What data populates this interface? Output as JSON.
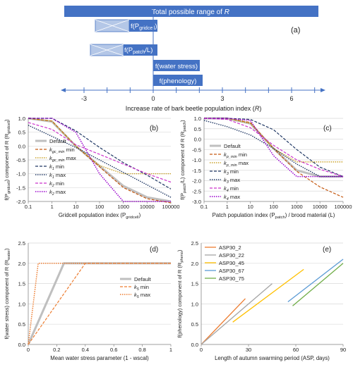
{
  "colors": {
    "bar_blue": "#4472C4",
    "bar_light": "#B4C7E7",
    "default_gray": "#BFBFBF",
    "orange": "#ED7D31",
    "brown": "#C65911",
    "olive": "#BF9000",
    "navy": "#203864",
    "magenta": "#CC33CC",
    "purple": "#9900CC",
    "asp_orange": "#ED7D31",
    "asp_gray": "#A5A5A5",
    "asp_gold": "#FFC000",
    "asp_blue": "#5B9BD5",
    "asp_green": "#70AD47"
  },
  "panel_a": {
    "label": "(a)",
    "bars": [
      {
        "text": "Total possible range of ",
        "var": "R"
      },
      {
        "text": "f(P",
        "sub": "gridcell",
        "tail": ")"
      },
      {
        "text": "f(P",
        "sub": "patch",
        "tail": "/L)"
      },
      {
        "text": "f(water stress)"
      },
      {
        "text": "f(phenology)"
      }
    ],
    "axis": {
      "ticks": [
        "-3",
        "0",
        "3",
        "6"
      ],
      "label": "Increase rate of bark beetle population index (",
      "label_var": "R",
      "label_tail": ")"
    }
  },
  "chart_data": [
    {
      "panel": "(b)",
      "type": "line",
      "xscale": "log",
      "xlim": [
        0.1,
        100000
      ],
      "ylim": [
        -2.0,
        1.0
      ],
      "xticks": [
        "0.1",
        "1",
        "10",
        "100",
        "1000",
        "10000",
        "100000"
      ],
      "yticks": [
        "1.0",
        "0.5",
        "0.0",
        "-0.5",
        "-1.0",
        "-1.5",
        "-2.0"
      ],
      "xlabel": {
        "text": "Gridcell population index (P",
        "sub": "gridcell",
        "tail": ")"
      },
      "ylabel": {
        "text": "f(P",
        "sub": "gridcell",
        "mid": ") component of R (R",
        "sub2": "gridcell",
        "tail": ")"
      },
      "legend": [
        "Default",
        "k_gc_min min",
        "k_gc_min max",
        "k1 min",
        "k1 max",
        "k2 min",
        "k2 max"
      ],
      "series": [
        {
          "name": "Default",
          "x": [
            0.1,
            1,
            10,
            100,
            1000,
            10000,
            100000
          ],
          "y": [
            1.0,
            0.88,
            0.0,
            -0.72,
            -1.44,
            -1.85,
            -2.0
          ]
        },
        {
          "name": "k_gc_min min",
          "x": [
            0.1,
            1,
            10,
            100,
            1000,
            10000,
            100000
          ],
          "y": [
            1.0,
            0.9,
            0.0,
            -0.75,
            -1.5,
            -1.9,
            -2.05
          ]
        },
        {
          "name": "k_gc_min max",
          "x": [
            0.1,
            1,
            10,
            100,
            1000,
            10000,
            100000
          ],
          "y": [
            1.0,
            0.9,
            0.0,
            -0.7,
            -1.0,
            -1.0,
            -1.0
          ]
        },
        {
          "name": "k1 min",
          "x": [
            0.1,
            1,
            10,
            100,
            1000,
            10000,
            100000
          ],
          "y": [
            1.0,
            1.0,
            0.55,
            -0.05,
            -0.6,
            -1.05,
            -1.55
          ]
        },
        {
          "name": "k1 max",
          "x": [
            0.1,
            1,
            10,
            100,
            1000,
            10000,
            100000
          ],
          "y": [
            0.75,
            0.35,
            -0.05,
            -0.5,
            -0.95,
            -1.4,
            -1.85
          ]
        },
        {
          "name": "k2 min",
          "x": [
            0.1,
            1,
            10,
            100,
            1000,
            10000,
            100000
          ],
          "y": [
            0.85,
            0.6,
            0.05,
            -0.3,
            -0.65,
            -1.0,
            -1.3
          ]
        },
        {
          "name": "k2 max",
          "x": [
            0.1,
            1,
            10,
            100,
            1000,
            10000,
            100000
          ],
          "y": [
            1.0,
            1.0,
            0.5,
            -1.0,
            -2.0,
            -2.0,
            -2.0
          ]
        }
      ]
    },
    {
      "panel": "(c)",
      "type": "line",
      "xscale": "log",
      "xlim": [
        0.1,
        100000
      ],
      "ylim": [
        -3.0,
        1.0
      ],
      "xticks": [
        "0.1",
        "1",
        "10",
        "100",
        "1000",
        "10000",
        "100000"
      ],
      "yticks": [
        "1.0",
        "0.5",
        "0.0",
        "-0.5",
        "-1.0",
        "-1.5",
        "-2.0",
        "-2.5",
        "-3.0"
      ],
      "xlabel": {
        "text": "Patch population index (P",
        "sub": "patch",
        "tail": ") / brood material (L)"
      },
      "ylabel": {
        "text": "f(P",
        "sub": "patch",
        "mid": "/L) component of R (R",
        "sub2": "patch",
        "tail": ")"
      },
      "legend": [
        "Default",
        "k_p_min min",
        "k_p_min max",
        "k3 min",
        "k3 max",
        "k4 min",
        "k4 max"
      ],
      "series": [
        {
          "name": "Default",
          "x": [
            0.1,
            1,
            10,
            100,
            1000,
            10000,
            100000
          ],
          "y": [
            1.0,
            1.0,
            0.75,
            -0.45,
            -1.5,
            -1.8,
            -1.8
          ]
        },
        {
          "name": "k_p_min min",
          "x": [
            0.1,
            1,
            10,
            100,
            1000,
            10000,
            100000
          ],
          "y": [
            1.0,
            1.0,
            0.8,
            -0.45,
            -1.55,
            -2.3,
            -2.8
          ]
        },
        {
          "name": "k_p_min max",
          "x": [
            0.1,
            1,
            10,
            100,
            1000,
            10000,
            100000
          ],
          "y": [
            1.0,
            1.0,
            0.75,
            -0.45,
            -1.1,
            -1.1,
            -1.1
          ]
        },
        {
          "name": "k3 min",
          "x": [
            0.1,
            1,
            10,
            100,
            1000,
            10000,
            100000
          ],
          "y": [
            1.0,
            1.0,
            0.95,
            0.45,
            -0.5,
            -1.35,
            -1.8
          ]
        },
        {
          "name": "k3 max",
          "x": [
            0.1,
            1,
            10,
            100,
            1000,
            10000,
            100000
          ],
          "y": [
            0.9,
            0.6,
            0.2,
            -0.45,
            -1.2,
            -1.8,
            -1.8
          ]
        },
        {
          "name": "k4 min",
          "x": [
            0.1,
            1,
            10,
            100,
            1000,
            10000,
            100000
          ],
          "y": [
            1.0,
            0.95,
            0.55,
            -0.3,
            -1.0,
            -1.45,
            -1.8
          ]
        },
        {
          "name": "k4 max",
          "x": [
            0.1,
            1,
            10,
            100,
            1000,
            10000,
            100000
          ],
          "y": [
            1.0,
            1.0,
            0.9,
            -0.8,
            -1.8,
            -1.8,
            -1.8
          ]
        }
      ]
    },
    {
      "panel": "(d)",
      "type": "line",
      "xlim": [
        0,
        1
      ],
      "ylim": [
        0,
        2.5
      ],
      "xticks": [
        "0",
        "0.2",
        "0.4",
        "0.6",
        "0.8",
        "1"
      ],
      "yticks": [
        "0.0",
        "0.5",
        "1.0",
        "1.5",
        "2.0",
        "2.5"
      ],
      "xlabel": {
        "text": "Mean water stress parameter (1 - wscal)"
      },
      "ylabel": {
        "text": "f(water stress) component of R (R",
        "sub": "water",
        "tail": ")"
      },
      "legend": [
        "Default",
        "k5 min",
        "k5 max"
      ],
      "series": [
        {
          "name": "Default",
          "x": [
            0,
            0.25,
            1
          ],
          "y": [
            0,
            2.0,
            2.0
          ]
        },
        {
          "name": "k5 min",
          "x": [
            0,
            0.4,
            1
          ],
          "y": [
            0,
            2.0,
            2.0
          ]
        },
        {
          "name": "k5 max",
          "x": [
            0,
            0.07,
            1
          ],
          "y": [
            0,
            2.0,
            2.0
          ]
        }
      ]
    },
    {
      "panel": "(e)",
      "type": "line",
      "xlim": [
        0,
        90
      ],
      "ylim": [
        0,
        2.5
      ],
      "xticks": [
        "0",
        "30",
        "60",
        "90"
      ],
      "yticks": [
        "0.0",
        "0.5",
        "1.0",
        "1.5",
        "2.0",
        "2.5"
      ],
      "xlabel": {
        "text": "Length of autumn swarming period (ASP, days)"
      },
      "ylabel": {
        "text": "f(phenology) component of R (R",
        "sub": "pheno",
        "tail": ")"
      },
      "legend": [
        "ASP30_2",
        "ASP30_22",
        "ASP30_45",
        "ASP30_67",
        "ASP30_75"
      ],
      "series": [
        {
          "name": "ASP30_2",
          "x": [
            0,
            28
          ],
          "y": [
            0,
            1.13
          ]
        },
        {
          "name": "ASP30_22",
          "x": [
            0,
            45
          ],
          "y": [
            0,
            1.5
          ]
        },
        {
          "name": "ASP30_45",
          "x": [
            20,
            65
          ],
          "y": [
            0.55,
            1.85
          ]
        },
        {
          "name": "ASP30_67",
          "x": [
            55,
            90
          ],
          "y": [
            1.05,
            2.1
          ]
        },
        {
          "name": "ASP30_75",
          "x": [
            58,
            90
          ],
          "y": [
            0.95,
            2.0
          ]
        }
      ]
    }
  ]
}
